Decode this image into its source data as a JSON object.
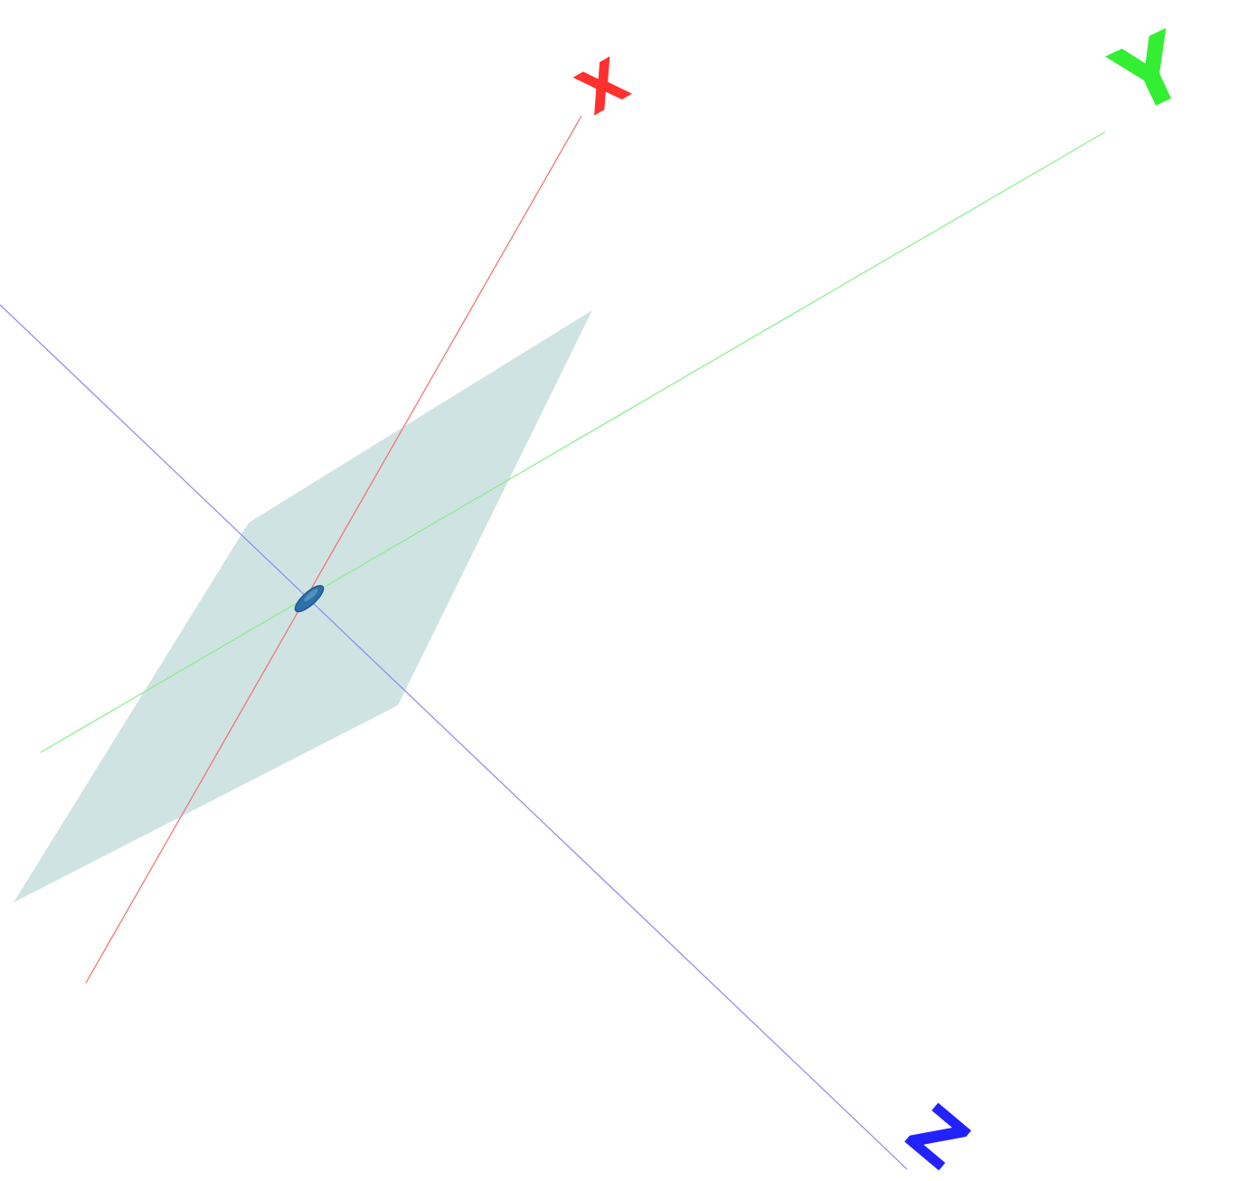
{
  "scene": {
    "background": "#ffffff",
    "plane_color": "#cfe3e3",
    "marker_color": "#2f6fa8",
    "axes": {
      "x": {
        "label": "X",
        "color": "#ff3030",
        "line_color": "#f07070"
      },
      "y": {
        "label": "Y",
        "color": "#33ee33",
        "line_color": "#88ee88"
      },
      "z": {
        "label": "Z",
        "color": "#2222ff",
        "line_color": "#8888ee"
      }
    }
  }
}
